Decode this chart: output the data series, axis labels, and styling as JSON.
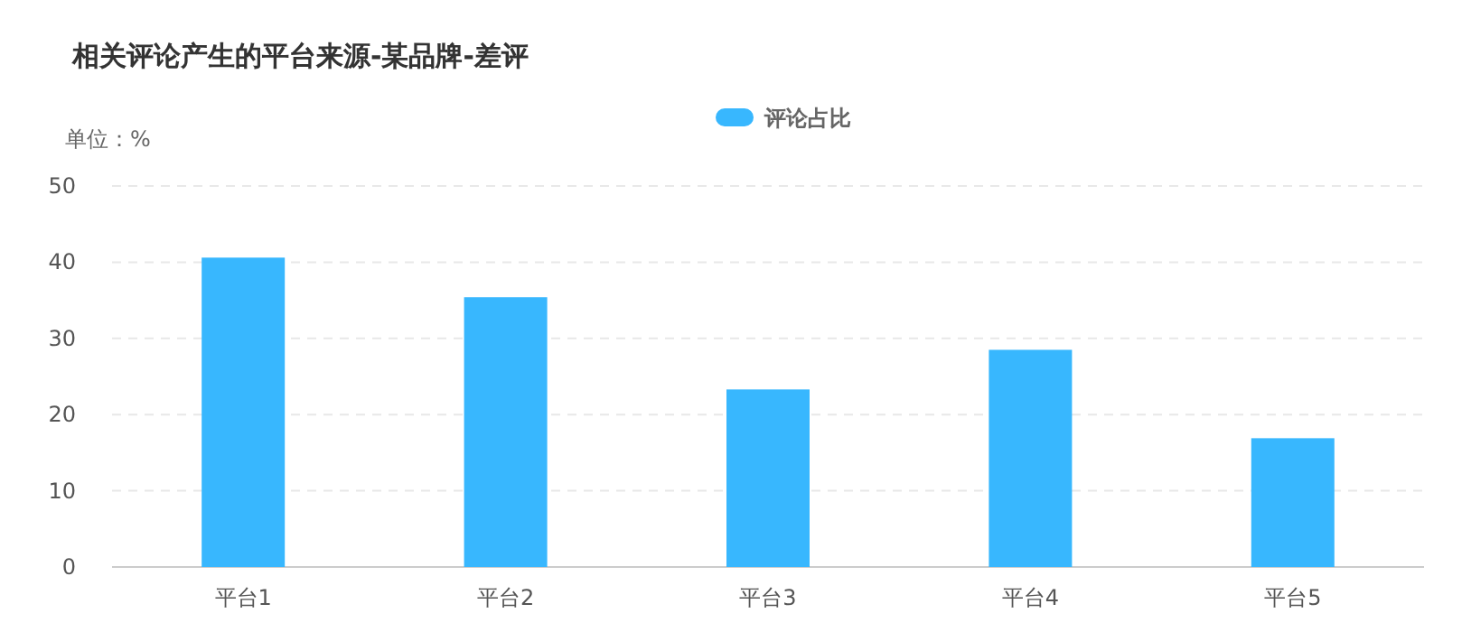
{
  "chart_data": {
    "type": "bar",
    "title": "相关评论产生的平台来源-某品牌-差评",
    "ylabel": "单位：%",
    "categories": [
      "平台1",
      "平台2",
      "平台3",
      "平台4",
      "平台5"
    ],
    "series": [
      {
        "name": "评论占比",
        "color": "#38b7fe",
        "values": [
          40.6,
          35.4,
          23.3,
          28.5,
          16.9
        ]
      }
    ],
    "ylim": [
      0,
      50
    ],
    "yticks": [
      0,
      10,
      20,
      30,
      40,
      50
    ],
    "grid": "y",
    "legend": "top"
  }
}
